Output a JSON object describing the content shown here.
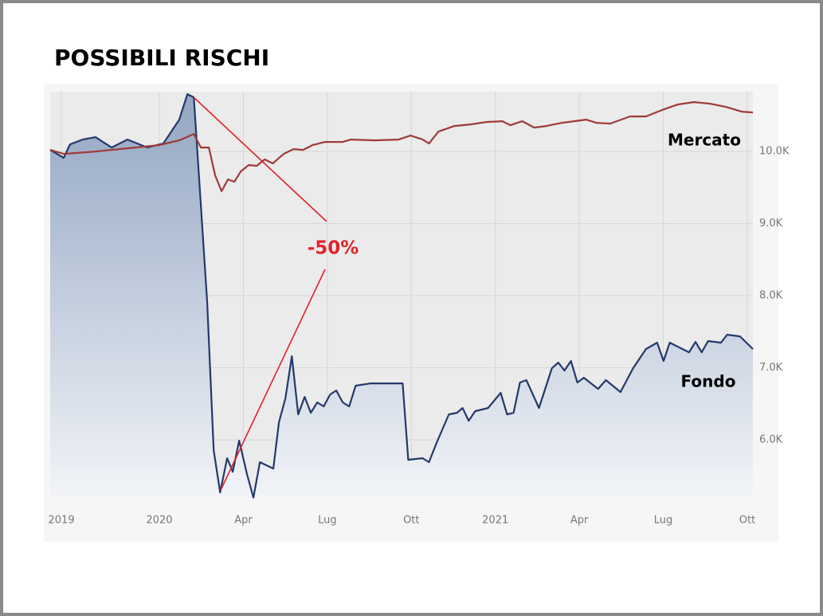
{
  "chart_data": {
    "type": "line",
    "title": "POSSIBILI RISCHI",
    "xlim": [
      -3.9,
      21.2
    ],
    "ylim": [
      5193,
      10830
    ],
    "xticks": [
      {
        "value": -3.5,
        "label": "2019"
      },
      {
        "value": 0,
        "label": "2020"
      },
      {
        "value": 3,
        "label": "Apr"
      },
      {
        "value": 6,
        "label": "Lug"
      },
      {
        "value": 9,
        "label": "Ott"
      },
      {
        "value": 12,
        "label": "2021"
      },
      {
        "value": 15,
        "label": "Apr"
      },
      {
        "value": 18,
        "label": "Lug"
      },
      {
        "value": 21,
        "label": "Ott"
      }
    ],
    "yticks": [
      {
        "value": 6000,
        "label": "6.0K"
      },
      {
        "value": 7000,
        "label": "7.0K"
      },
      {
        "value": 8000,
        "label": "8.0K"
      },
      {
        "value": 9000,
        "label": "9.0K"
      },
      {
        "value": 10000,
        "label": "10.0K"
      }
    ],
    "grid": true,
    "series": [
      {
        "name": "Fondo",
        "color": "#24396b",
        "x": [
          -3.9,
          -3.42,
          -3.19,
          -2.74,
          -2.28,
          -1.71,
          -1.14,
          -0.43,
          0.14,
          0.71,
          1.0,
          1.23,
          1.71,
          1.94,
          2.17,
          2.42,
          2.62,
          2.85,
          3.13,
          3.36,
          3.59,
          4.07,
          4.27,
          4.5,
          4.73,
          4.96,
          5.19,
          5.41,
          5.64,
          5.87,
          6.1,
          6.32,
          6.55,
          6.78,
          7.01,
          7.55,
          8.69,
          8.89,
          9.4,
          9.63,
          9.91,
          10.34,
          10.63,
          10.83,
          11.05,
          11.28,
          11.74,
          12.19,
          12.42,
          12.65,
          12.88,
          13.11,
          13.56,
          14.02,
          14.25,
          14.47,
          14.7,
          14.93,
          15.16,
          15.67,
          15.95,
          16.47,
          16.92,
          17.38,
          17.78,
          18.01,
          18.23,
          18.92,
          19.15,
          19.37,
          19.6,
          20.06,
          20.28,
          20.74,
          21.2
        ],
        "values": [
          10022,
          9912,
          10099,
          10166,
          10199,
          10055,
          10166,
          10055,
          10110,
          10442,
          10796,
          10751,
          7900,
          5856,
          5271,
          5746,
          5558,
          5989,
          5525,
          5200,
          5690,
          5602,
          6243,
          6575,
          7160,
          6354,
          6597,
          6376,
          6519,
          6464,
          6630,
          6685,
          6519,
          6464,
          6751,
          6784,
          6784,
          5724,
          5746,
          5690,
          5967,
          6354,
          6376,
          6442,
          6265,
          6398,
          6442,
          6652,
          6354,
          6376,
          6796,
          6829,
          6442,
          6994,
          7072,
          6961,
          7094,
          6796,
          6862,
          6707,
          6829,
          6663,
          6994,
          7260,
          7348,
          7094,
          7348,
          7215,
          7359,
          7215,
          7370,
          7348,
          7459,
          7436,
          7260
        ]
      },
      {
        "name": "Mercato",
        "color": "#a03a3a",
        "x": [
          -3.9,
          -3.42,
          -2.28,
          -1.14,
          0,
          0.71,
          1.23,
          1.48,
          1.77,
          1.99,
          2.22,
          2.45,
          2.68,
          2.91,
          3.19,
          3.48,
          3.76,
          4.05,
          4.44,
          4.79,
          5.13,
          5.47,
          5.93,
          6.55,
          6.84,
          7.69,
          8.55,
          8.97,
          9.4,
          9.63,
          9.97,
          10.54,
          11.11,
          11.68,
          12.25,
          12.54,
          12.96,
          13.39,
          13.82,
          14.39,
          15.24,
          15.61,
          16.1,
          16.81,
          17.38,
          17.95,
          18.52,
          19.09,
          19.66,
          20.23,
          20.8,
          21.2
        ],
        "values": [
          10022,
          9967,
          10000,
          10044,
          10088,
          10155,
          10243,
          10055,
          10055,
          9669,
          9448,
          9613,
          9580,
          9724,
          9812,
          9801,
          9890,
          9834,
          9967,
          10033,
          10022,
          10088,
          10133,
          10133,
          10166,
          10155,
          10166,
          10221,
          10166,
          10110,
          10276,
          10354,
          10376,
          10409,
          10420,
          10365,
          10420,
          10332,
          10354,
          10398,
          10442,
          10398,
          10387,
          10486,
          10486,
          10575,
          10652,
          10685,
          10663,
          10619,
          10553,
          10541
        ]
      }
    ],
    "annotation": "-50%"
  }
}
